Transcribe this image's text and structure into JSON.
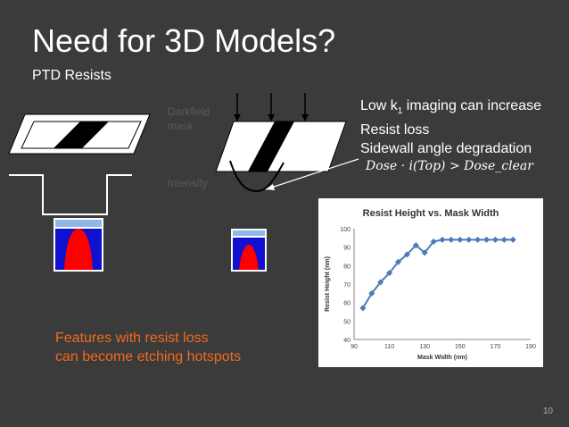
{
  "slide": {
    "title": "Need for 3D Models?",
    "subtitle": "PTD Resists",
    "bullets": {
      "line1_a": "Low k",
      "line1_sub": "1",
      "line1_b": " imaging can increase",
      "line2": "Resist loss",
      "line3": "Sidewall angle degradation"
    },
    "formula": "Dose · i(Top) > Dose_clear",
    "hotspot_line1": "Features with resist loss",
    "hotspot_line2": "can become etching hotspots",
    "figure_labels": {
      "darkfield_line1": "Darkfield",
      "darkfield_line2": "mask",
      "intensity": "Intensity"
    },
    "page_number": "10"
  },
  "colors": {
    "background": "#3b3b3b",
    "hotspot_text": "#f06a1e",
    "chart_series": "#4a7bb7",
    "resist_red": "#ff0000",
    "substrate_blue": "#1010d0"
  },
  "chart_data": {
    "type": "line",
    "title": "Resist Height vs. Mask Width",
    "xlabel": "Mask Width (nm)",
    "ylabel": "Resist Height (nm)",
    "xlim": [
      90,
      190
    ],
    "ylim": [
      40,
      100
    ],
    "xticks": [
      90,
      110,
      130,
      150,
      170,
      190
    ],
    "yticks": [
      40,
      50,
      60,
      70,
      80,
      90,
      100
    ],
    "series": [
      {
        "x": [
          95,
          100,
          105,
          110,
          115,
          120,
          125,
          130,
          135,
          140,
          145,
          150,
          155,
          160,
          165,
          170,
          175,
          180
        ],
        "y": [
          57,
          65,
          71,
          76,
          82,
          86,
          91,
          87,
          93,
          94,
          94,
          94,
          94,
          94,
          94,
          94,
          94,
          94
        ]
      }
    ]
  }
}
